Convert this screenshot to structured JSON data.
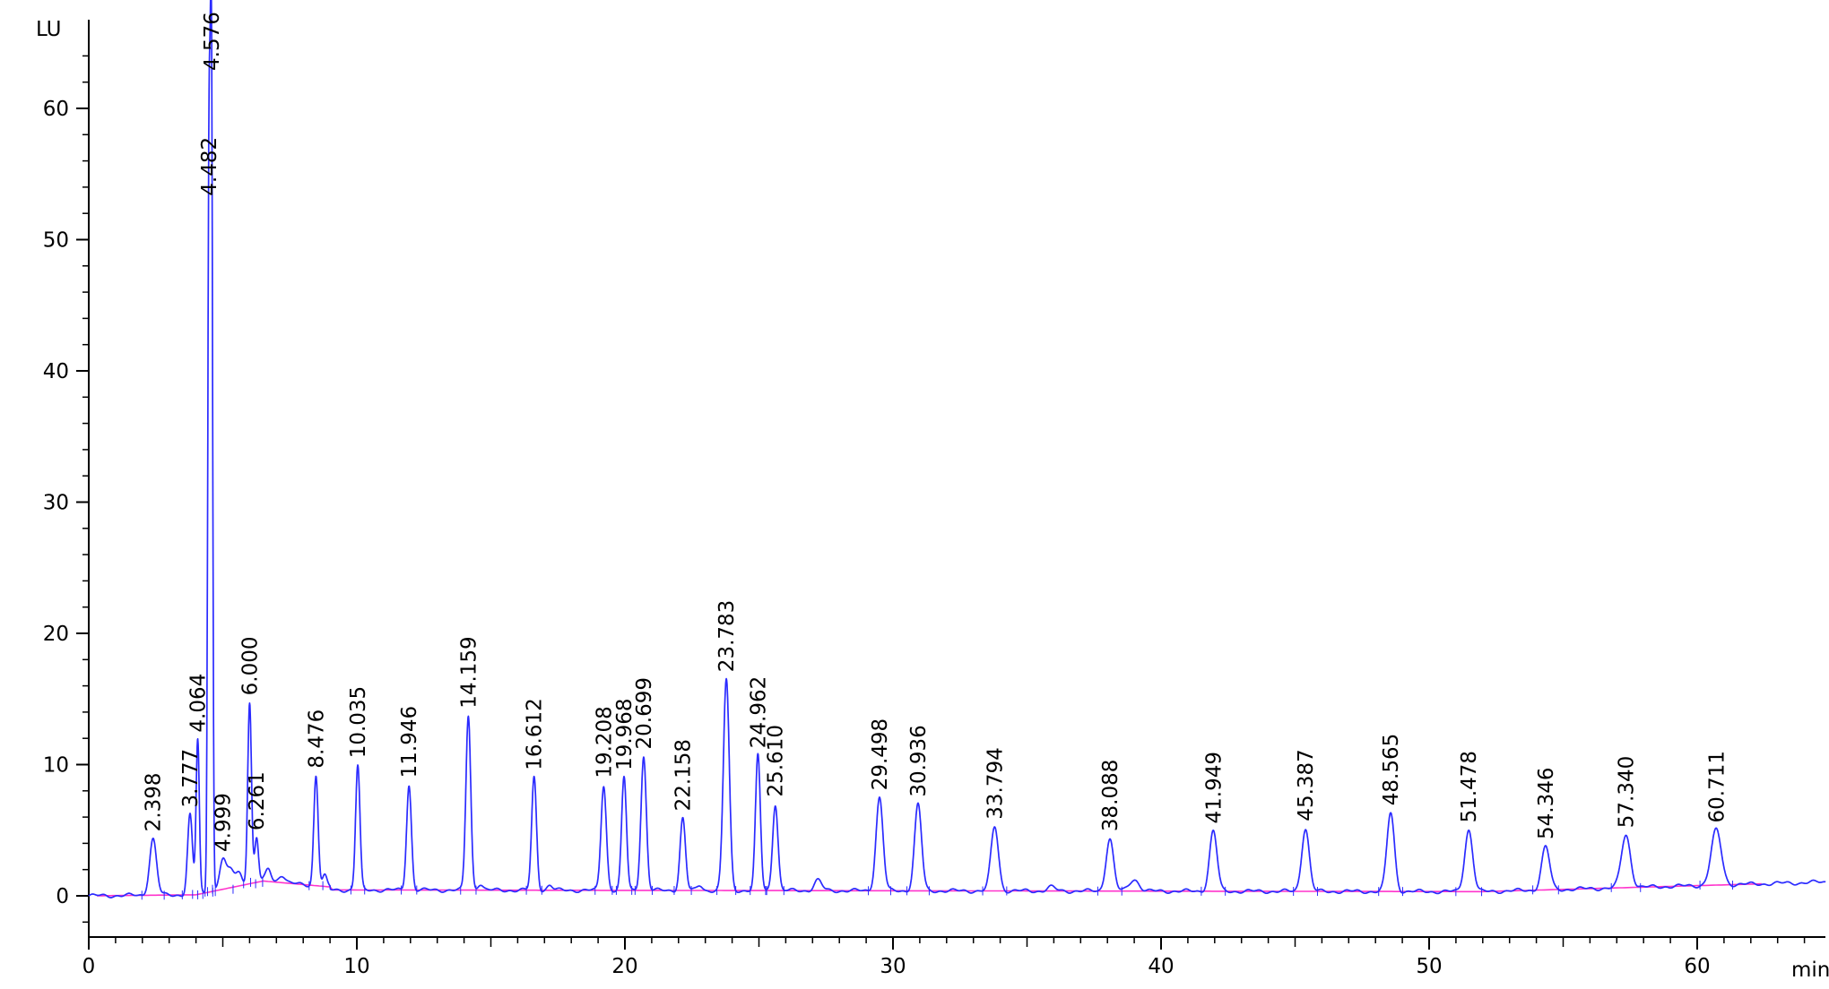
{
  "chart_data": {
    "type": "line",
    "xlabel": "min",
    "ylabel": "LU",
    "xlim": [
      0,
      65
    ],
    "ylim": [
      -3,
      66
    ],
    "x_ticks": [
      0,
      10,
      20,
      30,
      40,
      50,
      60
    ],
    "x_tick_labels": [
      "0",
      "10",
      "20",
      "30",
      "40",
      "50",
      "60"
    ],
    "y_ticks": [
      0,
      10,
      20,
      30,
      40,
      50,
      60
    ],
    "y_tick_labels": [
      "0",
      "10",
      "20",
      "30",
      "40",
      "50",
      "60"
    ],
    "grid": false,
    "colors": {
      "signal": "#2b2bff",
      "baseline": "#ff33cc",
      "axis": "#000000"
    },
    "peaks": [
      {
        "rt": 2.398,
        "label": "2.398",
        "height": 4.3,
        "width": 0.13
      },
      {
        "rt": 3.777,
        "label": "3.777",
        "height": 6.1,
        "width": 0.09
      },
      {
        "rt": 4.064,
        "label": "4.064",
        "height": 11.8,
        "width": 0.06
      },
      {
        "rt": 4.482,
        "label": "4.482",
        "height": 52.5,
        "width": 0.045
      },
      {
        "rt": 4.576,
        "label": "4.576",
        "height": 62.0,
        "width": 0.045
      },
      {
        "rt": 4.999,
        "label": "4.999",
        "height": 2.3,
        "width": 0.12
      },
      {
        "rt": 6.0,
        "label": "6.000",
        "height": 13.8,
        "width": 0.07
      },
      {
        "rt": 6.261,
        "label": "6.261",
        "height": 3.4,
        "width": 0.07
      },
      {
        "rt": 8.476,
        "label": "8.476",
        "height": 8.4,
        "width": 0.08
      },
      {
        "rt": 10.035,
        "label": "10.035",
        "height": 9.5,
        "width": 0.08
      },
      {
        "rt": 11.946,
        "label": "11.946",
        "height": 8.0,
        "width": 0.09
      },
      {
        "rt": 14.159,
        "label": "14.159",
        "height": 13.3,
        "width": 0.09
      },
      {
        "rt": 16.612,
        "label": "16.612",
        "height": 8.6,
        "width": 0.09
      },
      {
        "rt": 19.208,
        "label": "19.208",
        "height": 8.0,
        "width": 0.1
      },
      {
        "rt": 19.968,
        "label": "19.968",
        "height": 8.6,
        "width": 0.09
      },
      {
        "rt": 20.699,
        "label": "20.699",
        "height": 10.2,
        "width": 0.1
      },
      {
        "rt": 22.158,
        "label": "22.158",
        "height": 5.5,
        "width": 0.1
      },
      {
        "rt": 23.783,
        "label": "23.783",
        "height": 16.1,
        "width": 0.11
      },
      {
        "rt": 24.962,
        "label": "24.962",
        "height": 10.3,
        "width": 0.09
      },
      {
        "rt": 25.61,
        "label": "25.610",
        "height": 6.6,
        "width": 0.1
      },
      {
        "rt": 29.498,
        "label": "29.498",
        "height": 7.1,
        "width": 0.13
      },
      {
        "rt": 30.936,
        "label": "30.936",
        "height": 6.6,
        "width": 0.13
      },
      {
        "rt": 33.794,
        "label": "33.794",
        "height": 4.9,
        "width": 0.14
      },
      {
        "rt": 38.088,
        "label": "38.088",
        "height": 4.0,
        "width": 0.14
      },
      {
        "rt": 41.949,
        "label": "41.949",
        "height": 4.6,
        "width": 0.14
      },
      {
        "rt": 45.387,
        "label": "45.387",
        "height": 4.8,
        "width": 0.14
      },
      {
        "rt": 48.565,
        "label": "48.565",
        "height": 6.0,
        "width": 0.14
      },
      {
        "rt": 51.478,
        "label": "51.478",
        "height": 4.7,
        "width": 0.15
      },
      {
        "rt": 54.346,
        "label": "54.346",
        "height": 3.3,
        "width": 0.15
      },
      {
        "rt": 57.34,
        "label": "57.340",
        "height": 4.0,
        "width": 0.17
      },
      {
        "rt": 60.711,
        "label": "60.711",
        "height": 4.2,
        "width": 0.19
      }
    ]
  }
}
